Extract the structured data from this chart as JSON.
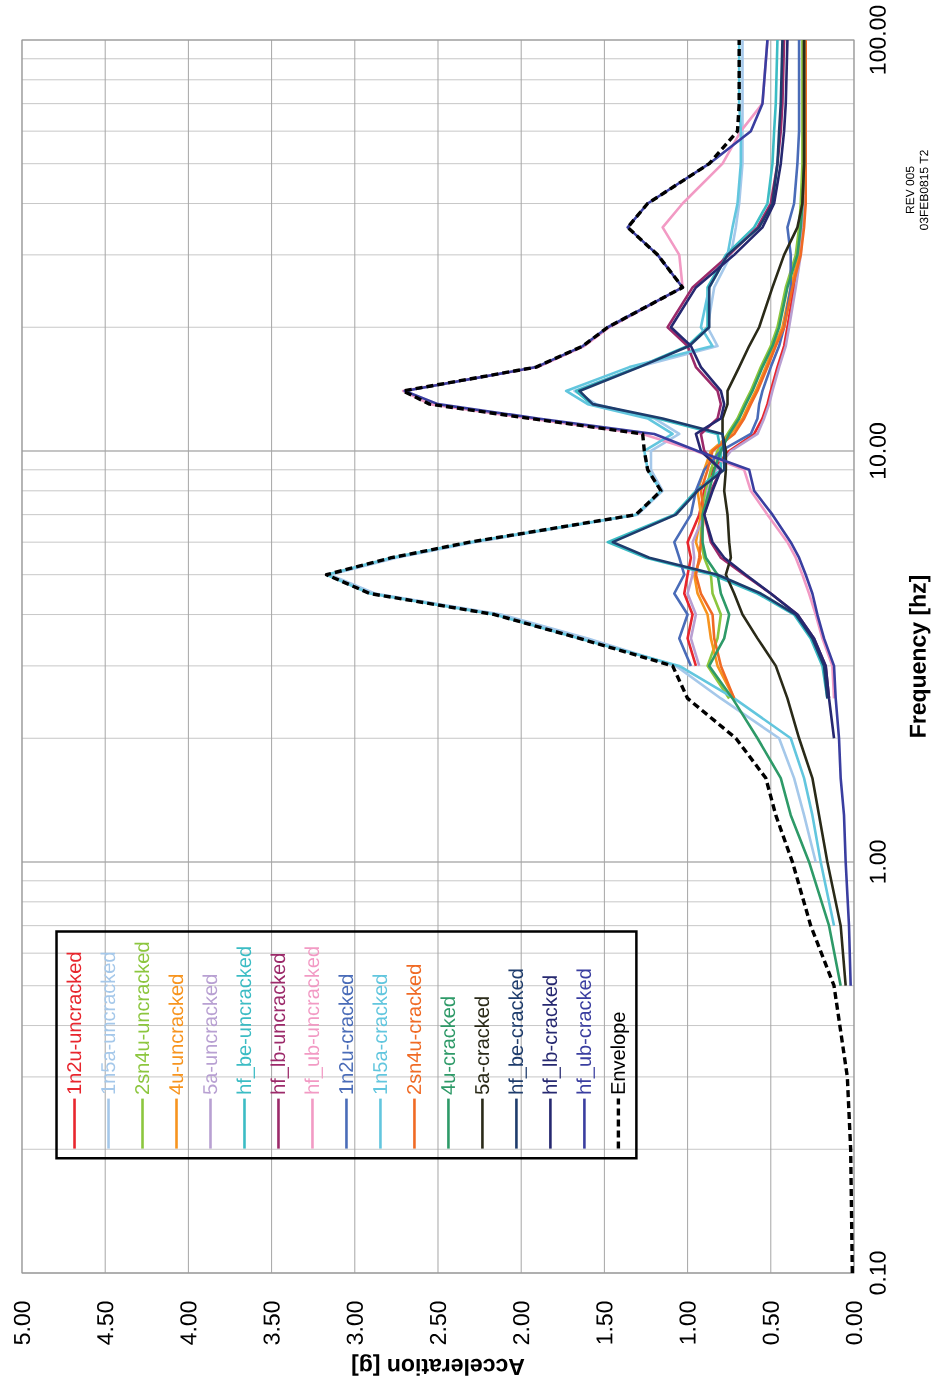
{
  "chart_data": {
    "type": "line",
    "xlabel": "Acceleration [g]",
    "ylabel": "Frequency [hz]",
    "log": "y",
    "grid": true,
    "legend": "bottom left",
    "xlim": [
      5,
      0
    ],
    "ylim": [
      0.1,
      100
    ],
    "xticks": [
      {
        "value": 5,
        "label": "5.00"
      },
      {
        "value": 4.5,
        "label": "4.50"
      },
      {
        "value": 4,
        "label": "4.00"
      },
      {
        "value": 3.5,
        "label": "3.50"
      },
      {
        "value": 3,
        "label": "3.00"
      },
      {
        "value": 2.5,
        "label": "2.50"
      },
      {
        "value": 2,
        "label": "2.00"
      },
      {
        "value": 1.5,
        "label": "1.50"
      },
      {
        "value": 1,
        "label": "1.00"
      },
      {
        "value": 0.5,
        "label": "0.50"
      },
      {
        "value": 0,
        "label": "0.00"
      }
    ],
    "yticks": [
      {
        "value": 0.1,
        "label": "0.10"
      },
      {
        "value": 1,
        "label": "1.00"
      },
      {
        "value": 10,
        "label": "10.00"
      },
      {
        "value": 100,
        "label": "100.00"
      }
    ],
    "annotations": [
      "REV 005",
      "03FEB0815 T2"
    ],
    "series": [
      {
        "name": "1n2u-uncracked",
        "color": "#e8262e",
        "x": [
          0.95,
          1.0,
          0.97,
          1.02,
          1.0,
          0.98,
          1.0,
          0.93,
          0.9,
          0.85,
          0.75,
          0.6,
          0.55,
          0.52,
          0.5,
          0.46,
          0.42,
          0.4,
          0.36,
          0.33,
          0.32,
          0.31,
          0.3,
          0.3
        ],
        "values": [
          3,
          3.5,
          4,
          4.5,
          5,
          5.5,
          6,
          7,
          8,
          9,
          10,
          11,
          12,
          13,
          14,
          16,
          18,
          20,
          25,
          30,
          35,
          40,
          50,
          100
        ]
      },
      {
        "name": "1n5a-uncracked",
        "color": "#a5c8ea",
        "x": [
          0.23,
          0.3,
          0.36,
          0.45,
          0.8,
          1.07,
          1.6,
          2.12,
          2.88,
          3.15,
          2.75,
          2.28,
          1.3,
          1.15,
          1.22,
          1.22,
          1.05,
          1.2,
          1.55,
          1.68,
          1.3,
          0.82,
          0.88,
          0.84,
          0.74,
          0.71,
          0.69,
          0.67,
          0.67
        ],
        "values": [
          1,
          1.3,
          1.6,
          2,
          2.5,
          3,
          3.5,
          4,
          4.5,
          5,
          5.5,
          6,
          7,
          8,
          9,
          10,
          11,
          12,
          13,
          14,
          16,
          18,
          20,
          25,
          30,
          35,
          40,
          50,
          100
        ]
      },
      {
        "name": "2sn4u-uncracked",
        "color": "#8cc63e",
        "x": [
          0.75,
          0.88,
          0.82,
          0.8,
          0.85,
          0.86,
          0.9,
          0.92,
          0.92,
          0.89,
          0.86,
          0.82,
          0.76,
          0.7,
          0.66,
          0.62,
          0.56,
          0.5,
          0.46,
          0.41,
          0.35,
          0.33,
          0.32,
          0.31,
          0.31
        ],
        "values": [
          2.5,
          3,
          3.5,
          4,
          4.5,
          5,
          5.5,
          6,
          7,
          8,
          9,
          10,
          11,
          12,
          13,
          14,
          16,
          18,
          20,
          25,
          30,
          35,
          40,
          50,
          100
        ]
      },
      {
        "name": "4u-uncracked",
        "color": "#f7941e",
        "x": [
          0.72,
          0.82,
          0.86,
          0.88,
          0.94,
          0.96,
          0.92,
          0.95,
          0.92,
          0.94,
          0.9,
          0.86,
          0.74,
          0.67,
          0.63,
          0.59,
          0.53,
          0.48,
          0.43,
          0.38,
          0.33,
          0.31,
          0.3,
          0.3
        ],
        "values": [
          2.5,
          3,
          3.5,
          4,
          4.5,
          5,
          5.5,
          6,
          7,
          8,
          9,
          10,
          11,
          12,
          13,
          14,
          16,
          18,
          20,
          25,
          30,
          35,
          40,
          100
        ]
      },
      {
        "name": "5a-uncracked",
        "color": "#b8a0d2",
        "x": [
          0.93,
          0.98,
          0.95,
          1.0,
          0.97,
          0.96,
          0.97,
          0.9,
          0.88,
          0.83,
          0.74,
          0.58,
          0.54,
          0.51,
          0.49,
          0.45,
          0.41,
          0.39,
          0.35,
          0.32,
          0.31,
          0.3,
          0.29,
          0.29
        ],
        "values": [
          3,
          3.5,
          4,
          4.5,
          5,
          5.5,
          6,
          7,
          8,
          9,
          10,
          11,
          12,
          13,
          14,
          16,
          18,
          20,
          25,
          30,
          35,
          40,
          50,
          100
        ]
      },
      {
        "name": "hf_be-uncracked",
        "color": "#3bbcc4",
        "x": [
          0.16,
          0.19,
          0.26,
          0.36,
          0.58,
          0.85,
          1.25,
          1.48,
          1.08,
          0.95,
          0.8,
          0.8,
          0.82,
          1.18,
          1.58,
          1.67,
          1.3,
          1.0,
          0.88,
          0.88,
          0.77,
          0.6,
          0.52,
          0.49,
          0.48,
          0.47,
          0.46
        ],
        "values": [
          2.5,
          3,
          3.5,
          4,
          4.5,
          5,
          5.5,
          6,
          7,
          8,
          9,
          10,
          11,
          12,
          13,
          14,
          16,
          18,
          20,
          25,
          30,
          35,
          40,
          50,
          60,
          70,
          100
        ]
      },
      {
        "name": "hf_lb-uncracked",
        "color": "#9c2a6a",
        "x": [
          0.15,
          0.17,
          0.24,
          0.34,
          0.5,
          0.66,
          0.8,
          0.86,
          0.9,
          0.86,
          0.8,
          0.9,
          0.92,
          0.82,
          0.8,
          0.82,
          0.95,
          1.0,
          1.12,
          0.97,
          0.75,
          0.58,
          0.5,
          0.46,
          0.44,
          0.43,
          0.42
        ],
        "values": [
          2.5,
          3,
          3.5,
          4,
          4.5,
          5,
          5.5,
          6,
          7,
          8,
          9,
          10,
          11,
          12,
          13,
          14,
          16,
          18,
          20,
          25,
          30,
          35,
          40,
          50,
          60,
          70,
          100
        ]
      },
      {
        "name": "hf_ub-uncracked",
        "color": "#f29ac4",
        "x": [
          0.12,
          0.13,
          0.19,
          0.23,
          0.27,
          0.31,
          0.35,
          0.4,
          0.52,
          0.62,
          0.66,
          0.95,
          1.27,
          1.95,
          2.55,
          2.71,
          1.9,
          1.62,
          1.47,
          1.03,
          1.05,
          1.15,
          1.03,
          0.79,
          0.68,
          0.55,
          0.52
        ],
        "values": [
          2.5,
          3,
          3.5,
          4,
          4.5,
          5,
          5.5,
          6,
          7,
          8,
          9,
          10,
          11,
          12,
          13,
          14,
          16,
          18,
          20,
          25,
          30,
          35,
          40,
          50,
          60,
          70,
          100
        ]
      },
      {
        "name": "1n2u-cracked",
        "color": "#4a6cb8",
        "x": [
          0.98,
          1.05,
          1.0,
          1.08,
          1.02,
          1.05,
          1.08,
          0.98,
          0.95,
          0.9,
          0.8,
          0.62,
          0.58,
          0.57,
          0.55,
          0.5,
          0.45,
          0.42,
          0.38,
          0.38,
          0.4,
          0.36,
          0.34,
          0.33,
          0.33
        ],
        "values": [
          3,
          3.5,
          4,
          4.5,
          5,
          5.5,
          6,
          7,
          8,
          9,
          10,
          11,
          12,
          13,
          14,
          16,
          18,
          20,
          25,
          30,
          35,
          40,
          50,
          60,
          100
        ]
      },
      {
        "name": "1n5a-cracked",
        "color": "#62c6de",
        "x": [
          0.12,
          0.2,
          0.25,
          0.3,
          0.38,
          0.72,
          1.05,
          1.65,
          2.16,
          2.91,
          3.17,
          2.78,
          2.31,
          1.31,
          1.16,
          1.24,
          1.26,
          1.09,
          1.24,
          1.6,
          1.73,
          1.35,
          0.85,
          0.92,
          0.87,
          0.76,
          0.73,
          0.7,
          0.68,
          0.68,
          0.69,
          0.69
        ],
        "values": [
          0.7,
          1,
          1.3,
          1.6,
          2,
          2.5,
          3,
          3.5,
          4,
          4.5,
          5,
          5.5,
          6,
          7,
          8,
          9,
          10,
          11,
          12,
          13,
          14,
          16,
          18,
          20,
          25,
          30,
          35,
          40,
          50,
          60,
          70,
          100
        ]
      },
      {
        "name": "2sn4u-cracked",
        "color": "#f06a24",
        "x": [
          0.72,
          0.8,
          0.84,
          0.85,
          0.92,
          0.95,
          0.93,
          0.92,
          0.9,
          0.92,
          0.88,
          0.85,
          0.72,
          0.66,
          0.62,
          0.58,
          0.52,
          0.47,
          0.42,
          0.37,
          0.32,
          0.3,
          0.29,
          0.29
        ],
        "values": [
          2.5,
          3,
          3.5,
          4,
          4.5,
          5,
          5.5,
          6,
          7,
          8,
          9,
          10,
          11,
          12,
          13,
          14,
          16,
          18,
          20,
          25,
          30,
          35,
          40,
          100
        ]
      },
      {
        "name": "4u-cracked",
        "color": "#2e9a68",
        "x": [
          0.08,
          0.15,
          0.27,
          0.38,
          0.44,
          0.58,
          0.73,
          0.87,
          0.78,
          0.75,
          0.8,
          0.82,
          0.89,
          0.91,
          0.91,
          0.87,
          0.84,
          0.8,
          0.75,
          0.69,
          0.65,
          0.61,
          0.55,
          0.49,
          0.45,
          0.4,
          0.34,
          0.32,
          0.31,
          0.3,
          0.3
        ],
        "values": [
          0.5,
          0.7,
          1,
          1.3,
          1.6,
          2,
          2.5,
          3,
          3.5,
          4,
          4.5,
          5,
          5.5,
          6,
          7,
          8,
          9,
          10,
          11,
          12,
          13,
          14,
          16,
          18,
          20,
          25,
          30,
          35,
          40,
          50,
          100
        ]
      },
      {
        "name": "5a-cracked",
        "color": "#2a2a18",
        "x": [
          0.05,
          0.08,
          0.16,
          0.21,
          0.25,
          0.33,
          0.4,
          0.47,
          0.58,
          0.67,
          0.72,
          0.77,
          0.74,
          0.75,
          0.76,
          0.78,
          0.77,
          0.77,
          0.79,
          0.79,
          0.76,
          0.76,
          0.69,
          0.63,
          0.57,
          0.49,
          0.42,
          0.34,
          0.31,
          0.3,
          0.3
        ],
        "values": [
          0.5,
          0.7,
          1,
          1.3,
          1.6,
          2,
          2.5,
          3,
          3.5,
          4,
          4.5,
          5,
          5.5,
          6,
          7,
          8,
          9,
          10,
          11,
          12,
          13,
          14,
          16,
          18,
          20,
          25,
          30,
          35,
          40,
          50,
          100
        ]
      },
      {
        "name": "hf_be-cracked",
        "color": "#1e3c6c",
        "x": [
          0.16,
          0.18,
          0.25,
          0.35,
          0.56,
          0.82,
          1.23,
          1.45,
          1.07,
          0.94,
          0.78,
          0.78,
          0.79,
          1.15,
          1.57,
          1.65,
          1.29,
          0.99,
          0.87,
          0.87,
          0.76,
          0.57,
          0.49,
          0.46,
          0.45,
          0.44,
          0.43
        ],
        "values": [
          2.5,
          3,
          3.5,
          4,
          4.5,
          5,
          5.5,
          6,
          7,
          8,
          9,
          10,
          11,
          12,
          13,
          14,
          16,
          18,
          20,
          25,
          30,
          35,
          40,
          50,
          60,
          70,
          100
        ]
      },
      {
        "name": "hf_lb-cracked",
        "color": "#262870",
        "x": [
          0.12,
          0.15,
          0.17,
          0.24,
          0.34,
          0.5,
          0.65,
          0.78,
          0.85,
          0.9,
          0.85,
          0.8,
          0.92,
          0.95,
          0.8,
          0.78,
          0.8,
          0.92,
          0.98,
          1.1,
          0.95,
          0.72,
          0.55,
          0.48,
          0.44,
          0.42,
          0.41,
          0.4
        ],
        "values": [
          2,
          2.5,
          3,
          3.5,
          4,
          4.5,
          5,
          5.5,
          6,
          7,
          8,
          9,
          10,
          11,
          12,
          13,
          14,
          16,
          18,
          20,
          25,
          30,
          35,
          40,
          50,
          60,
          70,
          100
        ]
      },
      {
        "name": "hf_ub-cracked",
        "color": "#3a3ea0",
        "x": [
          0.02,
          0.03,
          0.05,
          0.06,
          0.08,
          0.09,
          0.11,
          0.12,
          0.18,
          0.22,
          0.25,
          0.29,
          0.33,
          0.38,
          0.49,
          0.6,
          0.63,
          0.94,
          1.2,
          1.9,
          2.5,
          2.7,
          1.91,
          1.63,
          1.48,
          1.03,
          1.18,
          1.36,
          1.24,
          0.87,
          0.62,
          0.55,
          0.52
        ],
        "values": [
          0.5,
          0.7,
          1,
          1.3,
          1.6,
          2,
          2.5,
          3,
          3.5,
          4,
          4.5,
          5,
          5.5,
          6,
          7,
          8,
          9,
          10,
          11,
          12,
          13,
          14,
          16,
          18,
          20,
          25,
          30,
          35,
          40,
          50,
          60,
          70,
          100
        ]
      },
      {
        "name": "Envelope",
        "color": "#000000",
        "line_style": "dashed",
        "x": [
          0.01,
          0.02,
          0.04,
          0.12,
          0.26,
          0.37,
          0.47,
          0.53,
          0.71,
          1.0,
          1.09,
          1.65,
          2.16,
          2.91,
          3.17,
          2.78,
          2.31,
          1.31,
          1.16,
          1.24,
          1.26,
          1.27,
          1.95,
          2.55,
          2.71,
          1.91,
          1.63,
          1.48,
          1.03,
          1.18,
          1.36,
          1.24,
          0.87,
          0.7,
          0.69,
          0.69
        ],
        "values": [
          0.1,
          0.2,
          0.3,
          0.5,
          0.7,
          1,
          1.3,
          1.6,
          2,
          2.5,
          3,
          3.5,
          4,
          4.5,
          5,
          5.5,
          6,
          7,
          8,
          9,
          10,
          11,
          12,
          13,
          14,
          16,
          18,
          20,
          25,
          30,
          35,
          40,
          50,
          60,
          70,
          100
        ]
      }
    ]
  }
}
